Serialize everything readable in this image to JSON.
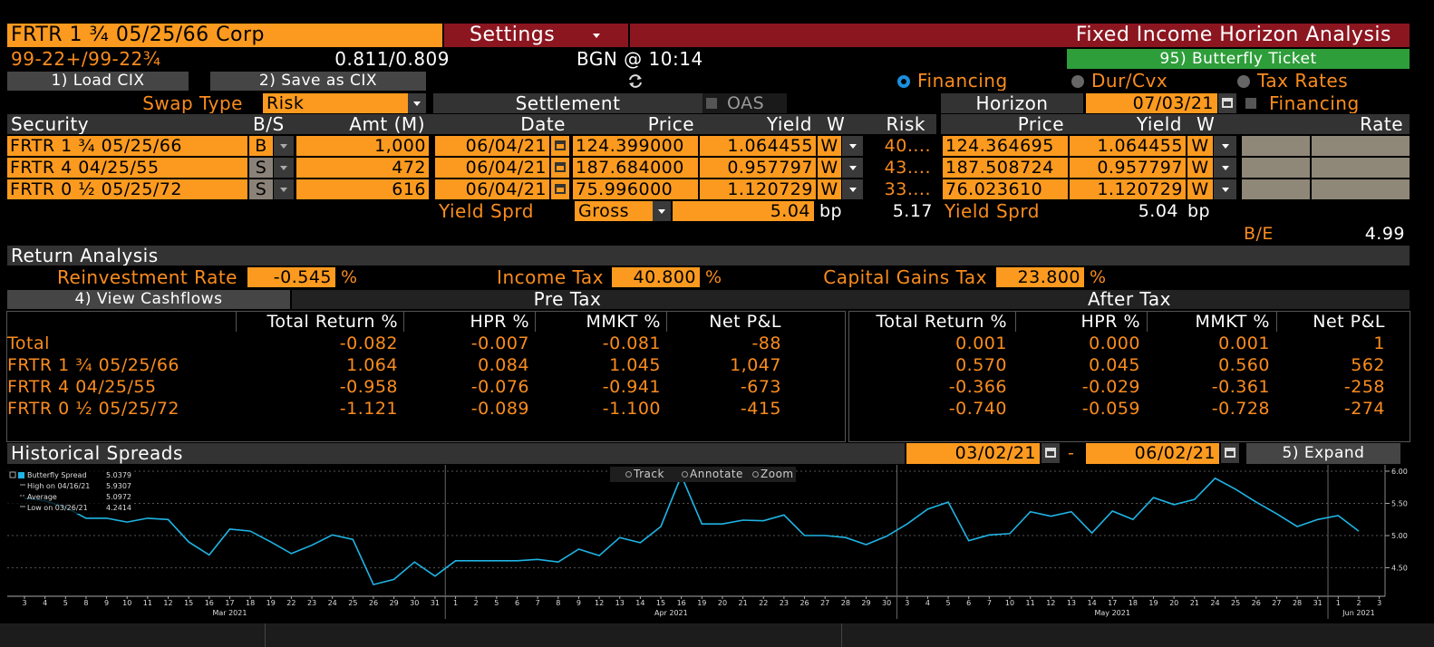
{
  "header": {
    "security": "FRTR 1 ¾ 05/25/66 Corp",
    "settings": "Settings",
    "title": "Fixed Income Horizon Analysis",
    "quote": "99-22+/99-22¾",
    "yield_quote": "0.811/0.809",
    "time": "BGN @  10:14",
    "butterfly": "95) Butterfly Ticket"
  },
  "buttons": {
    "load": "1) Load CIX",
    "save": "2) Save as CIX"
  },
  "options": [
    "Financing",
    "Dur/Cvx",
    "Tax Rates"
  ],
  "trade": {
    "swap_label": "Swap Type",
    "swap_value": "Risk",
    "settlement": "Settlement",
    "oas": "OAS",
    "horizon": "Horizon",
    "horizon_date": "07/03/21",
    "financing": "Financing",
    "columns": [
      "Security",
      "B/S",
      "Amt (M)",
      "Date",
      "Price",
      "Yield",
      "W",
      "Risk",
      "Price",
      "Yield",
      "W",
      "Rate"
    ],
    "rows": [
      [
        "FRTR 1 ¾ 05/25/66",
        "B",
        "1,000",
        "06/04/21",
        "124.399000",
        "1.064455",
        "W",
        "40....",
        "124.364695",
        "1.064455",
        "W"
      ],
      [
        "FRTR 4 04/25/55",
        "S",
        "472",
        "06/04/21",
        "187.684000",
        "0.957797",
        "W",
        "43....",
        "187.508724",
        "0.957797",
        "W"
      ],
      [
        "FRTR 0 ½ 05/25/72",
        "S",
        "616",
        "06/04/21",
        "75.996000",
        "1.120729",
        "W",
        "33....",
        "76.023610",
        "1.120729",
        "W"
      ]
    ],
    "spread": {
      "label": "Yield Sprd",
      "mode": "Gross",
      "value": "5.04",
      "unit": "bp",
      "risk": "5.17",
      "h_label": "Yield Sprd",
      "h_value": "5.04",
      "h_unit": "bp"
    },
    "be_label": "B/E",
    "be_value": "4.99"
  },
  "returns": {
    "title": "Return Analysis",
    "reinvest_label": "Reinvestment Rate",
    "reinvest": "-0.545",
    "percent": "%",
    "income_label": "Income Tax",
    "income": "40.800",
    "cg_label": "Capital Gains Tax",
    "cg": "23.800",
    "view": "4) View Cashflows",
    "pre": "Pre Tax",
    "after": "After Tax",
    "columns": [
      "Total Return %",
      "HPR %",
      "MMKT %",
      "Net P&L"
    ],
    "rows": [
      {
        "name": "Total",
        "pre": [
          "-0.082",
          "-0.007",
          "-0.081",
          "-88"
        ],
        "after": [
          "0.001",
          "0.000",
          "0.001",
          "1"
        ]
      },
      {
        "name": "FRTR 1 ¾ 05/25/66",
        "pre": [
          "1.064",
          "0.084",
          "1.045",
          "1,047"
        ],
        "after": [
          "0.570",
          "0.045",
          "0.560",
          "562"
        ]
      },
      {
        "name": "FRTR 4 04/25/55",
        "pre": [
          "-0.958",
          "-0.076",
          "-0.941",
          "-673"
        ],
        "after": [
          "-0.366",
          "-0.029",
          "-0.361",
          "-258"
        ]
      },
      {
        "name": "FRTR 0 ½ 05/25/72",
        "pre": [
          "-1.121",
          "-0.089",
          "-1.100",
          "-415"
        ],
        "after": [
          "-0.740",
          "-0.059",
          "-0.728",
          "-274"
        ]
      }
    ]
  },
  "spreads": {
    "title": "Historical Spreads",
    "from": "03/02/21",
    "dash": "-",
    "to": "06/02/21",
    "expand": "5) Expand",
    "tools": [
      "Track",
      "Annotate",
      "Zoom"
    ],
    "stats": [
      {
        "label": "High on 04/16/21",
        "value": "5.9307"
      },
      {
        "label": "Average",
        "value": "5.0972"
      },
      {
        "label": "Low on 03/26/21",
        "value": "4.2414"
      }
    ]
  },
  "chart": {
    "type": "line",
    "x": [
      "3",
      "4",
      "5",
      "8",
      "9",
      "10",
      "11",
      "12",
      "15",
      "16",
      "17",
      "18",
      "19",
      "22",
      "23",
      "24",
      "25",
      "26",
      "29",
      "30",
      "31",
      "1",
      "2",
      "5",
      "6",
      "7",
      "8",
      "9",
      "12",
      "13",
      "14",
      "15",
      "16",
      "19",
      "20",
      "21",
      "22",
      "23",
      "26",
      "27",
      "28",
      "29",
      "30",
      "3",
      "4",
      "5",
      "6",
      "7",
      "10",
      "11",
      "12",
      "13",
      "14",
      "17",
      "18",
      "19",
      "20",
      "21",
      "24",
      "25",
      "26",
      "27",
      "28",
      "31",
      "1",
      "2",
      "3"
    ],
    "months": [
      "Mar 2021",
      "Apr 2021",
      "May 2021",
      "Jun 2021"
    ],
    "series": [
      {
        "name": "Butterfly Spread",
        "value_label": "5.0379",
        "color": "#1fb4e4",
        "values": [
          5.58,
          5.54,
          5.44,
          5.27,
          5.27,
          5.21,
          5.27,
          5.25,
          4.9,
          4.7,
          5.1,
          5.07,
          4.9,
          4.72,
          4.85,
          5.01,
          4.94,
          4.24,
          4.32,
          4.59,
          4.37,
          4.61,
          4.61,
          4.61,
          4.61,
          4.63,
          4.59,
          4.79,
          4.69,
          4.97,
          4.89,
          5.14,
          5.93,
          5.18,
          5.18,
          5.24,
          5.23,
          5.32,
          5.0,
          5.0,
          4.97,
          4.86,
          4.99,
          5.18,
          5.41,
          5.52,
          4.92,
          5.01,
          5.03,
          5.37,
          5.3,
          5.37,
          5.04,
          5.38,
          5.25,
          5.59,
          5.48,
          5.56,
          5.89,
          5.72,
          5.52,
          5.34,
          5.14,
          5.25,
          5.31,
          5.07,
          null
        ]
      }
    ],
    "ylim": [
      4.1,
      6.07
    ],
    "yticks": [
      {
        "value": 4.5,
        "label": "4.50"
      },
      {
        "value": 5,
        "label": "5.00"
      },
      {
        "value": 5.5,
        "label": "5.50"
      },
      {
        "value": 6,
        "label": "6.00"
      }
    ],
    "grid": true
  }
}
